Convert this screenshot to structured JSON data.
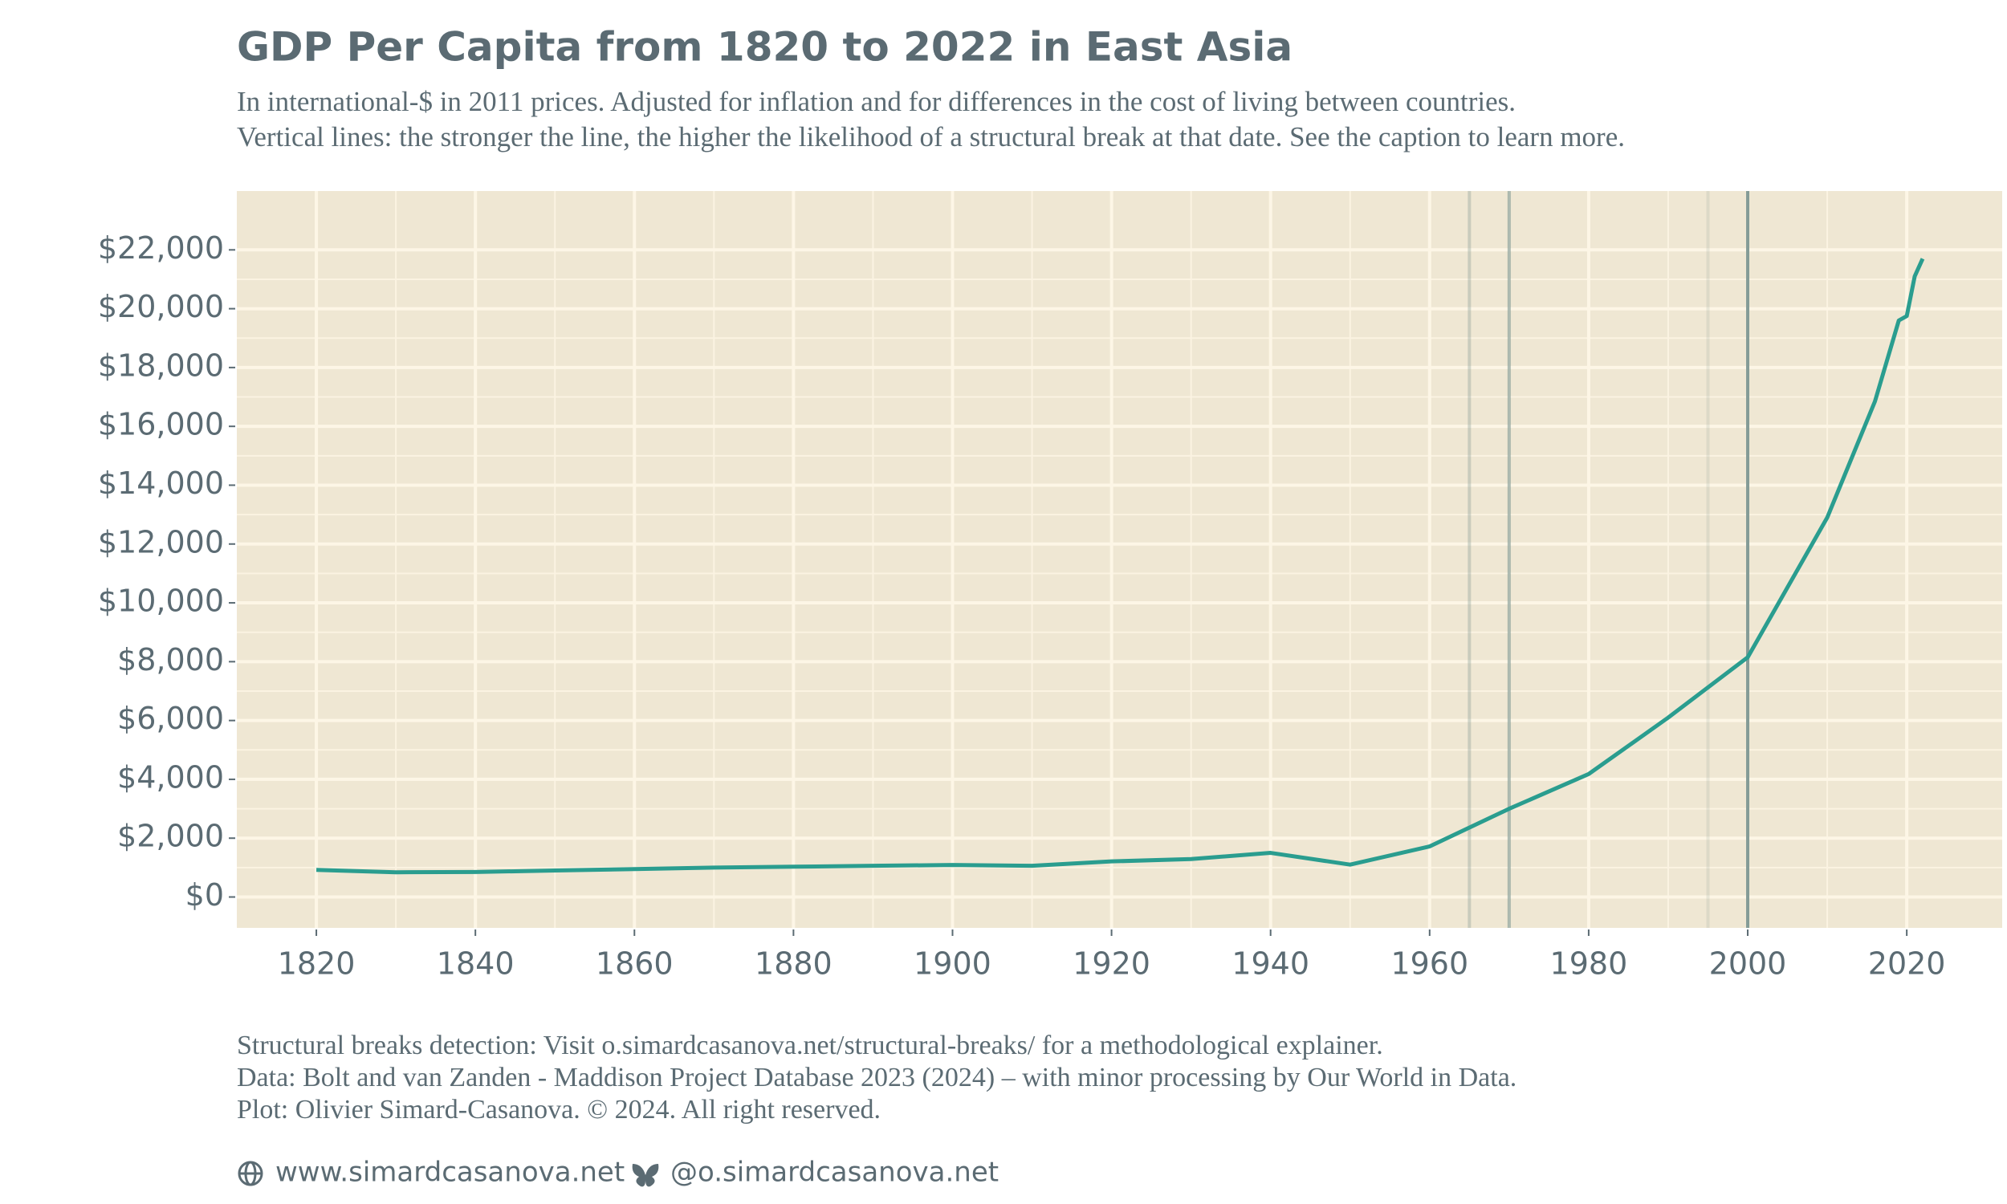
{
  "chart_data": {
    "type": "line",
    "title": "GDP Per Capita from 1820 to 2022 in East Asia",
    "subtitle": [
      "In international-$ in 2011 prices. Adjusted for inflation and for differences in the cost of living between countries.",
      "Vertical lines: the stronger the line, the higher the likelihood of a structural break at that date. See the caption to learn more."
    ],
    "x": [
      1820,
      1830,
      1840,
      1850,
      1860,
      1870,
      1880,
      1890,
      1900,
      1910,
      1920,
      1930,
      1940,
      1950,
      1960,
      1970,
      1980,
      1990,
      2000,
      2010,
      2016,
      2019,
      2020,
      2021,
      2022
    ],
    "series": [
      {
        "name": "East Asia",
        "color": "#2a9d8f",
        "values": [
          920,
          840,
          850,
          900,
          950,
          1000,
          1030,
          1060,
          1090,
          1060,
          1210,
          1290,
          1500,
          1100,
          1720,
          3000,
          4180,
          6100,
          8150,
          12900,
          16850,
          19600,
          19750,
          21100,
          21700
        ]
      }
    ],
    "structural_breaks": [
      1965,
      1970,
      1995,
      2000
    ],
    "break_opacity": [
      0.3,
      0.55,
      0.15,
      0.85
    ],
    "break_color": "#6f8c88",
    "xlim": [
      1810,
      2032
    ],
    "ylim": [
      -1050,
      24000
    ],
    "xticks": [
      1820,
      1840,
      1860,
      1880,
      1900,
      1920,
      1940,
      1960,
      1980,
      2000,
      2020
    ],
    "yticks": [
      {
        "value": 0,
        "label": "$0"
      },
      {
        "value": 2000,
        "label": "$2,000"
      },
      {
        "value": 4000,
        "label": "$4,000"
      },
      {
        "value": 6000,
        "label": "$6,000"
      },
      {
        "value": 8000,
        "label": "$8,000"
      },
      {
        "value": 10000,
        "label": "$10,000"
      },
      {
        "value": 12000,
        "label": "$12,000"
      },
      {
        "value": 14000,
        "label": "$14,000"
      },
      {
        "value": 16000,
        "label": "$16,000"
      },
      {
        "value": 18000,
        "label": "$18,000"
      },
      {
        "value": 20000,
        "label": "$20,000"
      },
      {
        "value": 22000,
        "label": "$22,000"
      }
    ],
    "grid": true,
    "caption": [
      "Structural breaks detection: Visit o.simardcasanova.net/structural-breaks/ for a methodological explainer.",
      "Data: Bolt and van Zanden - Maddison Project Database 2023 (2024) – with minor processing by Our World in Data.",
      "Plot: Olivier Simard-Casanova. © 2024. All right reserved."
    ],
    "links": [
      "www.simardcasanova.net",
      "@o.simardcasanova.net"
    ]
  }
}
